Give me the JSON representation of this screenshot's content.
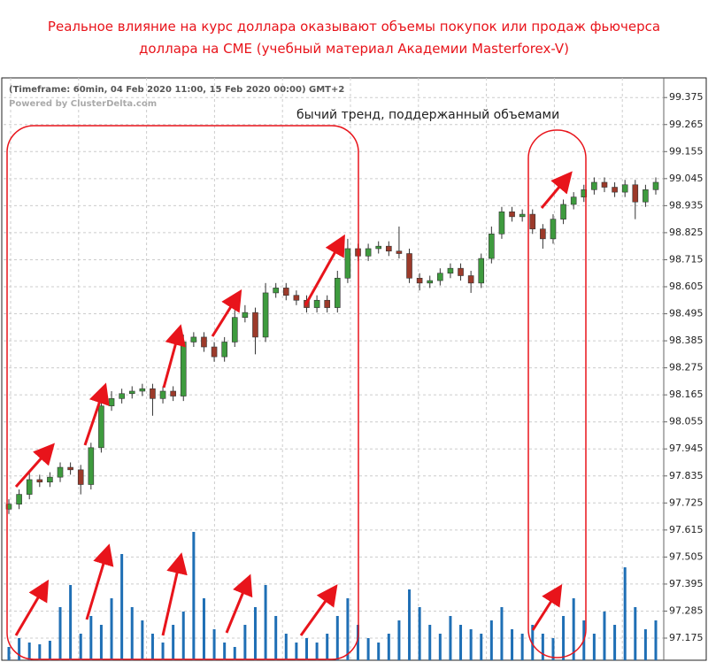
{
  "chart_data": {
    "type": "candlestick",
    "title": "Реальное влияние на курс доллара оказывают объемы покупок или продаж фьючерса доллара на CME (учебный материал Академии Masterforex-V)",
    "header": "(Timeframe: 60min, 04 Feb 2020 11:00, 15 Feb 2020 00:00) GMT+2",
    "credit": "Powered by ClusterDelta.com",
    "annotation": "бычий тренд, поддержанный объемами",
    "ylim": [
      97.085,
      99.455
    ],
    "yticks": [
      97.175,
      97.285,
      97.395,
      97.505,
      97.615,
      97.725,
      97.835,
      97.945,
      98.055,
      98.165,
      98.275,
      98.385,
      98.495,
      98.605,
      98.715,
      98.825,
      98.935,
      99.045,
      99.155,
      99.265,
      99.375
    ],
    "grid": true,
    "up_color": "#3e9b3e",
    "down_color": "#9c3a2a",
    "volume_color": "#1f6fb5",
    "open": [
      97.7,
      97.72,
      97.76,
      97.82,
      97.81,
      97.83,
      97.87,
      97.86,
      97.8,
      97.95,
      98.12,
      98.15,
      98.17,
      98.18,
      98.19,
      98.15,
      98.18,
      98.16,
      98.38,
      98.4,
      98.36,
      98.32,
      98.38,
      98.48,
      98.5,
      98.4,
      98.58,
      98.6,
      98.57,
      98.55,
      98.52,
      98.55,
      98.52,
      98.64,
      98.76,
      98.73,
      98.76,
      98.77,
      98.75,
      98.74,
      98.64,
      98.62,
      98.63,
      98.66,
      98.68,
      98.65,
      98.62,
      98.72,
      98.82,
      98.91,
      98.89,
      98.9,
      98.84,
      98.8,
      98.88,
      98.94,
      98.97,
      99.0,
      99.03,
      99.01,
      98.99,
      99.02,
      98.95,
      99.0
    ],
    "high": [
      97.74,
      97.78,
      97.85,
      97.84,
      97.85,
      97.89,
      97.89,
      97.88,
      97.97,
      98.15,
      98.18,
      98.19,
      98.2,
      98.21,
      98.21,
      98.2,
      98.2,
      98.41,
      98.42,
      98.42,
      98.38,
      98.4,
      98.51,
      98.53,
      98.52,
      98.62,
      98.62,
      98.62,
      98.59,
      98.57,
      98.57,
      98.57,
      98.67,
      98.8,
      98.78,
      98.78,
      98.79,
      98.79,
      98.85,
      98.76,
      98.66,
      98.65,
      98.68,
      98.7,
      98.7,
      98.67,
      98.74,
      98.85,
      98.93,
      98.93,
      98.92,
      98.92,
      98.86,
      98.9,
      98.96,
      98.99,
      99.02,
      99.05,
      99.05,
      99.03,
      99.04,
      99.04,
      99.02,
      99.05
    ],
    "low": [
      97.68,
      97.7,
      97.74,
      97.79,
      97.79,
      97.81,
      97.84,
      97.76,
      97.78,
      97.93,
      98.1,
      98.13,
      98.15,
      98.16,
      98.08,
      98.13,
      98.14,
      98.14,
      98.36,
      98.34,
      98.3,
      98.3,
      98.36,
      98.46,
      98.33,
      98.38,
      98.56,
      98.55,
      98.53,
      98.5,
      98.5,
      98.5,
      98.5,
      98.62,
      98.71,
      98.71,
      98.74,
      98.73,
      98.72,
      98.62,
      98.59,
      98.6,
      98.61,
      98.64,
      98.63,
      98.58,
      98.6,
      98.7,
      98.8,
      98.87,
      98.87,
      98.82,
      98.76,
      98.78,
      98.86,
      98.92,
      98.95,
      98.98,
      98.99,
      98.97,
      98.97,
      98.88,
      98.93,
      98.98
    ],
    "close": [
      97.72,
      97.76,
      97.82,
      97.81,
      97.83,
      97.87,
      97.86,
      97.8,
      97.95,
      98.12,
      98.15,
      98.17,
      98.18,
      98.19,
      98.15,
      98.18,
      98.16,
      98.38,
      98.4,
      98.36,
      98.32,
      98.38,
      98.48,
      98.5,
      98.4,
      98.58,
      98.6,
      98.57,
      98.55,
      98.52,
      98.55,
      98.52,
      98.64,
      98.76,
      98.73,
      98.76,
      98.77,
      98.75,
      98.74,
      98.64,
      98.62,
      98.63,
      98.66,
      98.68,
      98.65,
      98.62,
      98.72,
      98.82,
      98.91,
      98.89,
      98.9,
      98.84,
      98.8,
      98.88,
      98.94,
      98.97,
      99.0,
      99.03,
      99.01,
      98.99,
      99.02,
      98.95,
      99.0,
      99.03
    ],
    "volume": [
      15,
      25,
      20,
      18,
      22,
      60,
      85,
      30,
      50,
      40,
      70,
      120,
      60,
      45,
      30,
      20,
      40,
      55,
      145,
      70,
      35,
      20,
      15,
      40,
      60,
      85,
      50,
      30,
      20,
      25,
      20,
      30,
      50,
      70,
      40,
      25,
      20,
      30,
      45,
      80,
      60,
      40,
      30,
      50,
      40,
      35,
      30,
      45,
      60,
      35,
      30,
      40,
      30,
      25,
      50,
      70,
      45,
      30,
      55,
      40,
      105,
      60,
      35,
      45
    ]
  }
}
